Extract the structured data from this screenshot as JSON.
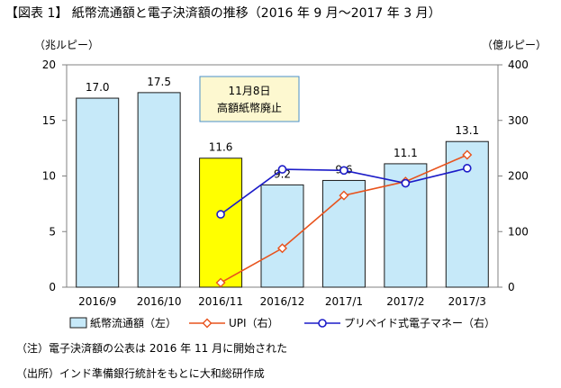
{
  "title": "【図表 1】 紙幣流通額と電子決済額の推移（2016 年 9 月～2017 年 3 月）",
  "notes": {
    "note1": "（注）電子決済額の公表は 2016 年 11 月に開始された",
    "note2": "（出所）インド準備銀行統計をもとに大和総研作成"
  },
  "annotation": {
    "line1": "11月8日",
    "line2": "高額紙幣廃止"
  },
  "colors": {
    "bar": "#c6e9f9",
    "bar_border": "#1a1a1a",
    "highlight_bar": "#ffff00",
    "upi": "#e8531d",
    "prepaid": "#1c1cc8",
    "annotation_bg": "#fdf8d0",
    "annotation_border": "#4a90c8"
  },
  "chart_data": {
    "type": "bar",
    "categories": [
      "2016/9",
      "2016/10",
      "2016/11",
      "2016/12",
      "2017/1",
      "2017/2",
      "2017/3"
    ],
    "y_left": {
      "label": "（兆ルピー）",
      "range": [
        0,
        20
      ],
      "ticks": [
        0,
        5,
        10,
        15,
        20
      ]
    },
    "y_right": {
      "label": "（億ルピー）",
      "range": [
        0,
        400
      ],
      "ticks": [
        0,
        100,
        200,
        300,
        400
      ]
    },
    "series": [
      {
        "name": "紙幣流通額（左）",
        "type": "bar",
        "axis": "left",
        "values": [
          17.0,
          17.5,
          11.6,
          9.2,
          9.6,
          11.1,
          13.1
        ],
        "labels": [
          "17.0",
          "17.5",
          "11.6",
          "9.2",
          "9.6",
          "11.1",
          "13.1"
        ],
        "highlight_index": 2
      },
      {
        "name": "UPI（右）",
        "type": "line",
        "axis": "right",
        "marker": "diamond",
        "values": [
          null,
          null,
          8,
          70,
          165,
          190,
          238
        ]
      },
      {
        "name": "プリペイド式電子マネー（右）",
        "type": "line",
        "axis": "right",
        "marker": "circle",
        "values": [
          null,
          null,
          131,
          212,
          210,
          187,
          214
        ]
      }
    ],
    "grid": false,
    "legend_placement": "bottom"
  }
}
